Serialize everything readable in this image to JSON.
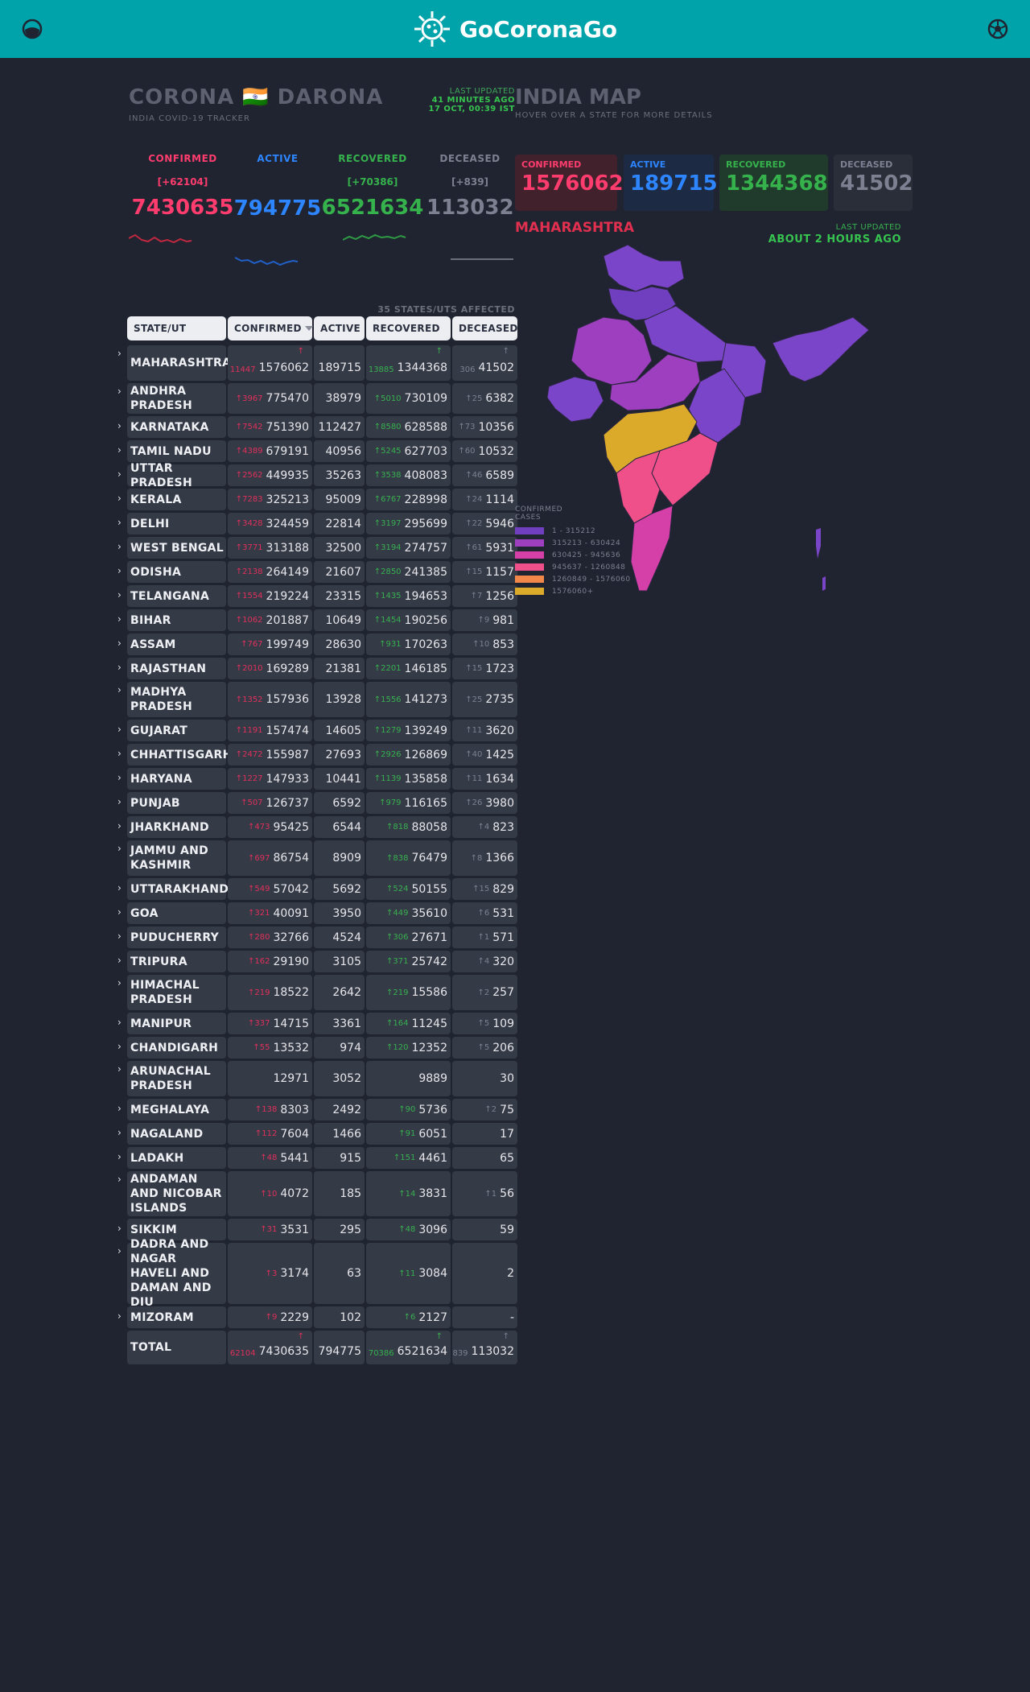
{
  "header": {
    "logo_text": "GoCoronaGo"
  },
  "tracker": {
    "title": "CORONA 🇮🇳 DARONA",
    "subtitle": "INDIA COVID-19 TRACKER",
    "last_updated_label": "LAST UPDATED",
    "last_updated_ago": "41 MINUTES AGO",
    "last_updated_time": "17 OCT, 00:39 IST"
  },
  "stats": [
    {
      "label": "CONFIRMED",
      "delta": "[+62104]",
      "total": "7430635",
      "color": "#ff3c6e"
    },
    {
      "label": "ACTIVE",
      "delta": "",
      "total": "794775",
      "color": "#2d85ff"
    },
    {
      "label": "RECOVERED",
      "delta": "[+70386]",
      "total": "6521634",
      "color": "#36b24d"
    },
    {
      "label": "DECEASED",
      "delta": "[+839]",
      "total": "113032",
      "color": "#8b8f9c"
    }
  ],
  "table": {
    "affected": "35 STATES/UTS AFFECTED",
    "headers": [
      "STATE/UT",
      "CONFIRMED",
      "ACTIVE",
      "RECOVERED",
      "DECEASED"
    ],
    "rows": [
      {
        "name": "MAHARASHTRA",
        "dc": "11447",
        "c": "1576062",
        "a": "189715",
        "dr": "13885",
        "r": "1344368",
        "dd": "306",
        "d": "41502"
      },
      {
        "name": "ANDHRA PRADESH",
        "dc": "3967",
        "c": "775470",
        "a": "38979",
        "dr": "5010",
        "r": "730109",
        "dd": "25",
        "d": "6382"
      },
      {
        "name": "KARNATAKA",
        "dc": "7542",
        "c": "751390",
        "a": "112427",
        "dr": "8580",
        "r": "628588",
        "dd": "73",
        "d": "10356"
      },
      {
        "name": "TAMIL NADU",
        "dc": "4389",
        "c": "679191",
        "a": "40956",
        "dr": "5245",
        "r": "627703",
        "dd": "60",
        "d": "10532"
      },
      {
        "name": "UTTAR PRADESH",
        "dc": "2562",
        "c": "449935",
        "a": "35263",
        "dr": "3538",
        "r": "408083",
        "dd": "46",
        "d": "6589"
      },
      {
        "name": "KERALA",
        "dc": "7283",
        "c": "325213",
        "a": "95009",
        "dr": "6767",
        "r": "228998",
        "dd": "24",
        "d": "1114"
      },
      {
        "name": "DELHI",
        "dc": "3428",
        "c": "324459",
        "a": "22814",
        "dr": "3197",
        "r": "295699",
        "dd": "22",
        "d": "5946"
      },
      {
        "name": "WEST BENGAL",
        "dc": "3771",
        "c": "313188",
        "a": "32500",
        "dr": "3194",
        "r": "274757",
        "dd": "61",
        "d": "5931"
      },
      {
        "name": "ODISHA",
        "dc": "2138",
        "c": "264149",
        "a": "21607",
        "dr": "2850",
        "r": "241385",
        "dd": "15",
        "d": "1157"
      },
      {
        "name": "TELANGANA",
        "dc": "1554",
        "c": "219224",
        "a": "23315",
        "dr": "1435",
        "r": "194653",
        "dd": "7",
        "d": "1256"
      },
      {
        "name": "BIHAR",
        "dc": "1062",
        "c": "201887",
        "a": "10649",
        "dr": "1454",
        "r": "190256",
        "dd": "9",
        "d": "981"
      },
      {
        "name": "ASSAM",
        "dc": "767",
        "c": "199749",
        "a": "28630",
        "dr": "931",
        "r": "170263",
        "dd": "10",
        "d": "853"
      },
      {
        "name": "RAJASTHAN",
        "dc": "2010",
        "c": "169289",
        "a": "21381",
        "dr": "2201",
        "r": "146185",
        "dd": "15",
        "d": "1723"
      },
      {
        "name": "MADHYA PRADESH",
        "dc": "1352",
        "c": "157936",
        "a": "13928",
        "dr": "1556",
        "r": "141273",
        "dd": "25",
        "d": "2735"
      },
      {
        "name": "GUJARAT",
        "dc": "1191",
        "c": "157474",
        "a": "14605",
        "dr": "1279",
        "r": "139249",
        "dd": "11",
        "d": "3620"
      },
      {
        "name": "CHHATTISGARH",
        "dc": "2472",
        "c": "155987",
        "a": "27693",
        "dr": "2926",
        "r": "126869",
        "dd": "40",
        "d": "1425"
      },
      {
        "name": "HARYANA",
        "dc": "1227",
        "c": "147933",
        "a": "10441",
        "dr": "1139",
        "r": "135858",
        "dd": "11",
        "d": "1634"
      },
      {
        "name": "PUNJAB",
        "dc": "507",
        "c": "126737",
        "a": "6592",
        "dr": "979",
        "r": "116165",
        "dd": "26",
        "d": "3980"
      },
      {
        "name": "JHARKHAND",
        "dc": "473",
        "c": "95425",
        "a": "6544",
        "dr": "818",
        "r": "88058",
        "dd": "4",
        "d": "823"
      },
      {
        "name": "JAMMU AND KASHMIR",
        "dc": "697",
        "c": "86754",
        "a": "8909",
        "dr": "838",
        "r": "76479",
        "dd": "8",
        "d": "1366"
      },
      {
        "name": "UTTARAKHAND",
        "dc": "549",
        "c": "57042",
        "a": "5692",
        "dr": "524",
        "r": "50155",
        "dd": "15",
        "d": "829"
      },
      {
        "name": "GOA",
        "dc": "321",
        "c": "40091",
        "a": "3950",
        "dr": "449",
        "r": "35610",
        "dd": "6",
        "d": "531"
      },
      {
        "name": "PUDUCHERRY",
        "dc": "280",
        "c": "32766",
        "a": "4524",
        "dr": "306",
        "r": "27671",
        "dd": "1",
        "d": "571"
      },
      {
        "name": "TRIPURA",
        "dc": "162",
        "c": "29190",
        "a": "3105",
        "dr": "371",
        "r": "25742",
        "dd": "4",
        "d": "320"
      },
      {
        "name": "HIMACHAL PRADESH",
        "dc": "219",
        "c": "18522",
        "a": "2642",
        "dr": "219",
        "r": "15586",
        "dd": "2",
        "d": "257"
      },
      {
        "name": "MANIPUR",
        "dc": "337",
        "c": "14715",
        "a": "3361",
        "dr": "164",
        "r": "11245",
        "dd": "5",
        "d": "109"
      },
      {
        "name": "CHANDIGARH",
        "dc": "55",
        "c": "13532",
        "a": "974",
        "dr": "120",
        "r": "12352",
        "dd": "5",
        "d": "206"
      },
      {
        "name": "ARUNACHAL PRADESH",
        "dc": "",
        "c": "12971",
        "a": "3052",
        "dr": "",
        "r": "9889",
        "dd": "",
        "d": "30"
      },
      {
        "name": "MEGHALAYA",
        "dc": "138",
        "c": "8303",
        "a": "2492",
        "dr": "90",
        "r": "5736",
        "dd": "2",
        "d": "75"
      },
      {
        "name": "NAGALAND",
        "dc": "112",
        "c": "7604",
        "a": "1466",
        "dr": "91",
        "r": "6051",
        "dd": "",
        "d": "17"
      },
      {
        "name": "LADAKH",
        "dc": "48",
        "c": "5441",
        "a": "915",
        "dr": "151",
        "r": "4461",
        "dd": "",
        "d": "65"
      },
      {
        "name": "ANDAMAN AND NICOBAR ISLANDS",
        "dc": "10",
        "c": "4072",
        "a": "185",
        "dr": "14",
        "r": "3831",
        "dd": "1",
        "d": "56"
      },
      {
        "name": "SIKKIM",
        "dc": "31",
        "c": "3531",
        "a": "295",
        "dr": "48",
        "r": "3096",
        "dd": "",
        "d": "59"
      },
      {
        "name": "DADRA AND NAGAR HAVELI AND DAMAN AND DIU",
        "dc": "3",
        "c": "3174",
        "a": "63",
        "dr": "11",
        "r": "3084",
        "dd": "",
        "d": "2"
      },
      {
        "name": "MIZORAM",
        "dc": "9",
        "c": "2229",
        "a": "102",
        "dr": "6",
        "r": "2127",
        "dd": "",
        "d": "-"
      }
    ],
    "total": {
      "name": "TOTAL",
      "dc": "62104",
      "c": "7430635",
      "a": "794775",
      "dr": "70386",
      "r": "6521634",
      "dd": "839",
      "d": "113032"
    }
  },
  "map": {
    "title": "INDIA MAP",
    "subtitle": "HOVER OVER A STATE FOR MORE DETAILS",
    "cards": [
      {
        "label": "CONFIRMED",
        "value": "1576062"
      },
      {
        "label": "ACTIVE",
        "value": "189715"
      },
      {
        "label": "RECOVERED",
        "value": "1344368"
      },
      {
        "label": "DECEASED",
        "value": "41502"
      }
    ],
    "state": "MAHARASHTRA",
    "last_updated_label": "LAST UPDATED",
    "last_updated_value": "ABOUT 2 HOURS AGO",
    "legend_title": "CONFIRMED CASES",
    "legend": [
      {
        "label": "1 - 315212",
        "color": "#6f3fbf"
      },
      {
        "label": "315213 - 630424",
        "color": "#9e3fbf"
      },
      {
        "label": "630425 - 945636",
        "color": "#d43fa8"
      },
      {
        "label": "945637 - 1260848",
        "color": "#f0508a"
      },
      {
        "label": "1260849 - 1576060",
        "color": "#f2874a"
      },
      {
        "label": "1576060+",
        "color": "#dcaa2a"
      }
    ]
  }
}
